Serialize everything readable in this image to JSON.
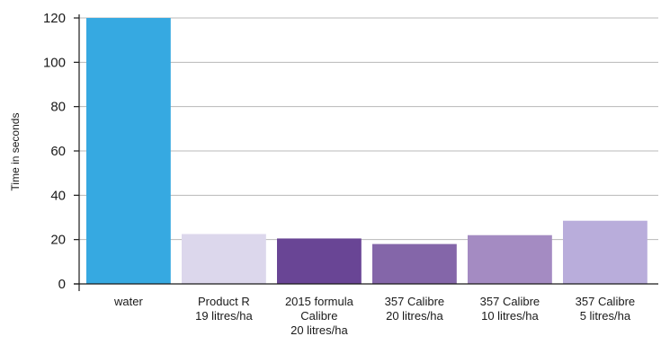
{
  "chart_data": {
    "type": "bar",
    "title": "",
    "xlabel": "",
    "ylabel": "Time in seconds",
    "ylim": [
      0,
      120
    ],
    "yticks": [
      0,
      20,
      40,
      60,
      80,
      100,
      120
    ],
    "grid": true,
    "categories": [
      [
        "water"
      ],
      [
        "Product R",
        "19 litres/ha"
      ],
      [
        "2015 formula",
        "Calibre",
        "20 litres/ha"
      ],
      [
        "357 Calibre",
        "20 litres/ha"
      ],
      [
        "357 Calibre",
        "10 litres/ha"
      ],
      [
        "357 Calibre",
        "5 litres/ha"
      ]
    ],
    "values": [
      120,
      22.5,
      20.5,
      18,
      22,
      28.5
    ],
    "colors": [
      "#36a9e1",
      "#dcd7ec",
      "#694595",
      "#8466a9",
      "#a48bc2",
      "#b9addb"
    ]
  }
}
